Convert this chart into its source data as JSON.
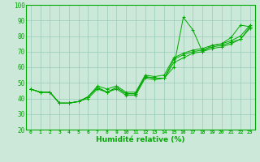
{
  "xlabel": "Humidité relative (%)",
  "xlim": [
    -0.5,
    23.5
  ],
  "ylim": [
    20,
    100
  ],
  "yticks": [
    20,
    30,
    40,
    50,
    60,
    70,
    80,
    90,
    100
  ],
  "xticks": [
    0,
    1,
    2,
    3,
    4,
    5,
    6,
    7,
    8,
    9,
    10,
    11,
    12,
    13,
    14,
    15,
    16,
    17,
    18,
    19,
    20,
    21,
    22,
    23
  ],
  "background_color": "#cce8d8",
  "grid_color": "#99ccbb",
  "line_color": "#00aa00",
  "line1": [
    46,
    44,
    44,
    37,
    37,
    38,
    41,
    47,
    44,
    47,
    43,
    43,
    54,
    53,
    53,
    60,
    92,
    84,
    70,
    74,
    75,
    79,
    87,
    86
  ],
  "line2": [
    46,
    44,
    44,
    37,
    37,
    38,
    41,
    47,
    44,
    47,
    43,
    43,
    54,
    53,
    53,
    65,
    68,
    70,
    71,
    73,
    74,
    76,
    78,
    86
  ],
  "line3": [
    46,
    44,
    44,
    37,
    37,
    38,
    41,
    48,
    46,
    48,
    44,
    44,
    55,
    54,
    55,
    66,
    69,
    71,
    72,
    74,
    75,
    77,
    80,
    87
  ],
  "line4": [
    46,
    44,
    44,
    37,
    37,
    38,
    40,
    46,
    44,
    46,
    42,
    42,
    53,
    52,
    53,
    63,
    66,
    69,
    70,
    72,
    73,
    75,
    78,
    85
  ]
}
